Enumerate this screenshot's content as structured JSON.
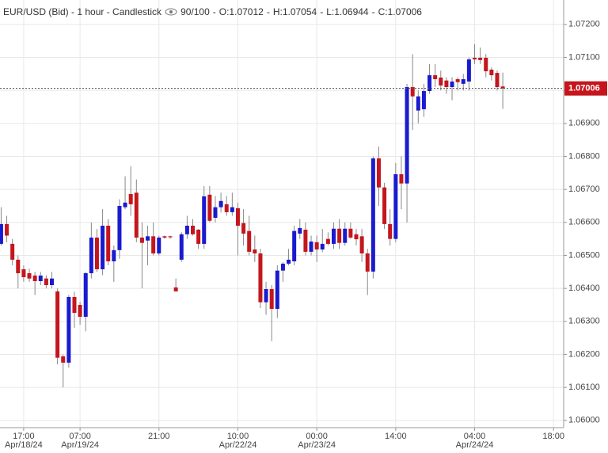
{
  "chart_data": {
    "type": "candlestick",
    "title": "EUR/USD (Bid) - 1 hour - Candlestick",
    "counter": "90/100",
    "ohlc_labels": [
      "O:1.07012",
      "H:1.07054",
      "L:1.06944",
      "C:1.07006"
    ],
    "categories": [
      null,
      null,
      null,
      null,
      "17:00",
      null,
      null,
      null,
      null,
      null,
      null,
      null,
      null,
      null,
      "07:00",
      null,
      null,
      null,
      null,
      null,
      null,
      null,
      null,
      null,
      null,
      null,
      null,
      null,
      "21:00",
      null,
      null,
      null,
      null,
      null,
      null,
      null,
      null,
      null,
      null,
      null,
      null,
      null,
      "10:00",
      null,
      null,
      null,
      null,
      null,
      null,
      null,
      null,
      null,
      null,
      null,
      null,
      null,
      "00:00",
      null,
      null,
      null,
      null,
      null,
      null,
      null,
      null,
      null,
      null,
      null,
      null,
      null,
      "14:00",
      null,
      null,
      null,
      null,
      null,
      null,
      null,
      null,
      null,
      null,
      null,
      null,
      null,
      "04:00",
      null,
      null,
      null,
      null,
      null,
      null,
      null,
      null,
      null,
      null,
      null,
      null,
      null,
      "18:00",
      null
    ],
    "dates": [
      null,
      null,
      null,
      null,
      "Apr/18/24",
      null,
      null,
      null,
      null,
      null,
      null,
      null,
      null,
      null,
      "Apr/19/24",
      null,
      null,
      null,
      null,
      null,
      null,
      null,
      null,
      null,
      null,
      null,
      null,
      null,
      null,
      null,
      null,
      null,
      null,
      null,
      null,
      null,
      null,
      null,
      null,
      null,
      null,
      null,
      "Apr/22/24",
      null,
      null,
      null,
      null,
      null,
      null,
      null,
      null,
      null,
      null,
      null,
      null,
      null,
      "Apr/23/24",
      null,
      null,
      null,
      null,
      null,
      null,
      null,
      null,
      null,
      null,
      null,
      null,
      null,
      null,
      null,
      null,
      null,
      null,
      null,
      null,
      null,
      null,
      null,
      null,
      null,
      null,
      null,
      "Apr/24/24",
      null,
      null,
      null,
      null,
      null,
      null,
      null,
      null,
      null,
      null,
      null,
      null,
      null,
      null,
      null
    ],
    "open": [
      1.06535,
      1.06595,
      1.06535,
      1.06487,
      1.06458,
      1.06446,
      1.06439,
      1.06422,
      1.0643,
      1.0641,
      1.06391,
      1.06194,
      1.06175,
      1.06374,
      1.0635,
      1.06314,
      1.06446,
      1.06554,
      1.06458,
      1.0659,
      1.06482,
      1.06516,
      1.06646,
      1.06686,
      1.0669,
      1.06554,
      1.06545,
      1.06558,
      1.06506,
      1.06558,
      1.06558,
      1.06403,
      1.06487,
      1.06564,
      1.0659,
      1.06578,
      1.06535,
      1.06684,
      1.06614,
      1.06646,
      1.06655,
      1.06631,
      1.06643,
      1.06598,
      1.06574,
      1.06518,
      1.06506,
      1.06358,
      1.06398,
      1.06338,
      1.06454,
      1.06475,
      1.06482,
      1.06566,
      1.06578,
      1.06511,
      1.0654,
      1.06518,
      1.0655,
      1.06535,
      1.06581,
      1.06538,
      1.06581,
      1.06564,
      1.06558,
      1.06506,
      1.06451,
      1.06794,
      1.06706,
      1.06595,
      1.0655,
      1.06746,
      1.06718,
      1.0701,
      1.06939,
      1.06943,
      1.06998,
      1.07046,
      1.07039,
      1.0703,
      1.0701,
      1.07034,
      1.0702,
      1.07027,
      1.07099,
      1.07099,
      1.07099,
      1.07063,
      1.07053,
      1.07012,
      null,
      null,
      null,
      null,
      null,
      null,
      null,
      null,
      null,
      null
    ],
    "high": [
      1.06646,
      1.0662,
      1.0655,
      1.065,
      1.0647,
      1.0646,
      1.0645,
      1.0645,
      1.0644,
      1.0645,
      1.064,
      1.062,
      1.0638,
      1.0639,
      1.0636,
      1.0645,
      1.066,
      1.0658,
      1.0664,
      1.0661,
      1.0653,
      1.0667,
      1.0674,
      1.0677,
      1.0673,
      1.066,
      1.0659,
      1.066,
      1.0656,
      1.0656,
      1.0656,
      1.0643,
      1.0657,
      1.0662,
      1.0661,
      1.0658,
      1.0671,
      1.0671,
      1.0668,
      1.0669,
      1.0668,
      1.0669,
      1.0666,
      1.0664,
      1.0662,
      1.0656,
      1.0652,
      1.0642,
      1.0641,
      1.0647,
      1.0648,
      1.0652,
      1.0659,
      1.0661,
      1.066,
      1.0656,
      1.0656,
      1.0658,
      1.0657,
      1.066,
      1.0661,
      1.066,
      1.066,
      1.0658,
      1.0658,
      1.0652,
      1.068,
      1.0683,
      1.0672,
      1.0664,
      1.0678,
      1.068,
      1.0702,
      1.0711,
      1.07,
      1.0702,
      1.0708,
      1.0708,
      1.0706,
      1.0704,
      1.0704,
      1.0704,
      1.0705,
      1.071,
      1.0714,
      1.0713,
      1.0711,
      1.0707,
      1.0706,
      1.07054,
      null,
      null,
      null,
      null,
      null,
      null,
      null,
      null,
      null,
      null
    ],
    "low": [
      1.0653,
      1.0654,
      1.0647,
      1.064,
      1.0642,
      1.0642,
      1.0638,
      1.0641,
      1.064,
      1.064,
      1.0617,
      1.061,
      1.0616,
      1.0628,
      1.0629,
      1.0627,
      1.0643,
      1.0645,
      1.0644,
      1.0647,
      1.0642,
      1.0649,
      1.0664,
      1.0662,
      1.0654,
      1.064,
      1.0647,
      1.065,
      1.065,
      1.0655,
      1.0655,
      1.0639,
      1.0648,
      1.0655,
      1.0656,
      1.0652,
      1.0652,
      1.066,
      1.066,
      1.0663,
      1.0662,
      1.0662,
      1.065,
      1.0653,
      1.065,
      1.0648,
      1.0634,
      1.0632,
      1.0624,
      1.0631,
      1.0642,
      1.0647,
      1.0647,
      1.0655,
      1.065,
      1.065,
      1.0648,
      1.0651,
      1.0653,
      1.0652,
      1.0652,
      1.0653,
      1.0655,
      1.0653,
      1.0648,
      1.0638,
      1.0643,
      1.0665,
      1.0658,
      1.0653,
      1.0654,
      1.0664,
      1.066,
      1.0688,
      1.069,
      1.0692,
      1.0699,
      1.0701,
      1.07,
      1.0699,
      1.0697,
      1.07,
      1.07,
      1.07,
      1.0708,
      1.0708,
      1.0704,
      1.0703,
      1.07,
      1.06944,
      null,
      null,
      null,
      null,
      null,
      null,
      null,
      null,
      null,
      null
    ],
    "close": [
      1.06595,
      1.0656,
      1.06487,
      1.06446,
      1.06434,
      1.0643,
      1.06422,
      1.06439,
      1.0641,
      1.0643,
      1.0619,
      1.06175,
      1.06374,
      1.06326,
      1.06314,
      1.06446,
      1.06554,
      1.06458,
      1.0659,
      1.06482,
      1.06516,
      1.0665,
      1.0666,
      1.06655,
      1.06554,
      1.06538,
      1.06558,
      1.06506,
      1.06554,
      1.06554,
      1.06555,
      1.06391,
      1.06564,
      1.0659,
      1.06564,
      1.06535,
      1.06679,
      1.06605,
      1.06646,
      1.06665,
      1.06631,
      1.06646,
      1.0659,
      1.06566,
      1.06511,
      1.06506,
      1.06358,
      1.06398,
      1.06338,
      1.06454,
      1.06475,
      1.06487,
      1.06574,
      1.06583,
      1.06511,
      1.06542,
      1.06518,
      1.06535,
      1.06535,
      1.06581,
      1.06538,
      1.06581,
      1.06554,
      1.06549,
      1.06506,
      1.06451,
      1.06794,
      1.06706,
      1.06595,
      1.0655,
      1.06746,
      1.06718,
      1.0701,
      1.06982,
      1.06982,
      1.06998,
      1.07046,
      1.07034,
      1.07015,
      1.0701,
      1.07027,
      1.07025,
      1.07034,
      1.07094,
      1.07094,
      1.07092,
      1.07058,
      1.07046,
      1.0701,
      1.07006,
      null,
      null,
      null,
      null,
      null,
      null,
      null,
      null,
      null,
      null
    ],
    "up_color": "#1a1acf",
    "down_color": "#c4161c",
    "last_price": {
      "value": 1.07006,
      "label": "1.07006"
    },
    "last_price_color": "#c4161c",
    "ylim": [
      1.05978,
      1.07274
    ],
    "yticks": [
      {
        "value": 1.06,
        "label": "1.06000"
      },
      {
        "value": 1.061,
        "label": "1.06100"
      },
      {
        "value": 1.062,
        "label": "1.06200"
      },
      {
        "value": 1.063,
        "label": "1.06300"
      },
      {
        "value": 1.064,
        "label": "1.06400"
      },
      {
        "value": 1.065,
        "label": "1.06500"
      },
      {
        "value": 1.066,
        "label": "1.06600"
      },
      {
        "value": 1.067,
        "label": "1.06700"
      },
      {
        "value": 1.068,
        "label": "1.06800"
      },
      {
        "value": 1.069,
        "label": "1.06900"
      },
      {
        "value": 1.07,
        "label": "1.07000"
      },
      {
        "value": 1.071,
        "label": "1.07100"
      },
      {
        "value": 1.072,
        "label": "1.07200"
      }
    ],
    "grid": true
  }
}
